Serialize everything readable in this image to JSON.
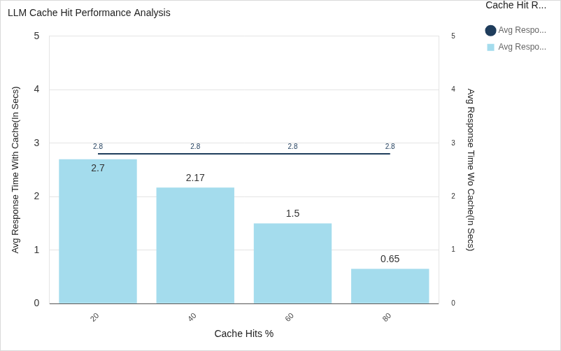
{
  "chart_data": {
    "type": "bar",
    "title": "LLM Cache Hit Performance Analysis",
    "x_label": "Cache Hits %",
    "y_label": "Avg Response Time With Cache(In Secs)",
    "y2_label": "Avg Response Time Wo Cache(In Secs)",
    "legend_title": "Cache Hit R...",
    "categories": [
      "20",
      "40",
      "60",
      "80"
    ],
    "series": [
      {
        "name": "Avg Respo...",
        "type": "bar",
        "color": "#a4dced",
        "values": [
          2.7,
          2.17,
          1.5,
          0.65
        ]
      },
      {
        "name": "Avg Respo...",
        "type": "line",
        "axis": "y2",
        "color": "#1f3d5c",
        "values": [
          2.8,
          2.8,
          2.8,
          2.8
        ]
      }
    ],
    "ylim": [
      0,
      5
    ],
    "yticks": [
      0,
      1,
      2,
      3,
      4,
      5
    ],
    "y2lim": [
      0,
      5
    ],
    "y2ticks": [
      0,
      1,
      2,
      3,
      4,
      5
    ],
    "grid": true,
    "legend": "right",
    "data_labels": true
  }
}
